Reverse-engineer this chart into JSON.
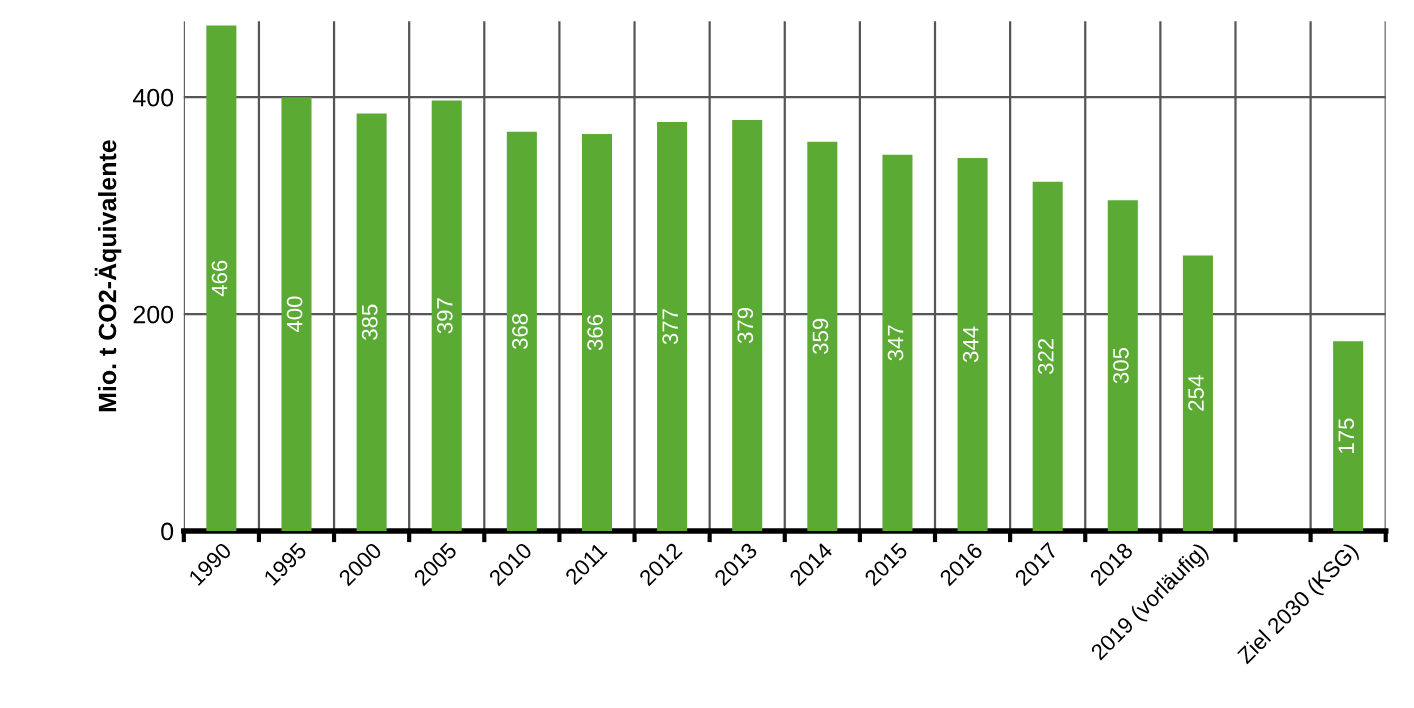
{
  "chart_data": {
    "type": "bar",
    "ylabel": "Mio. t CO2-Äquivalente",
    "categories": [
      "1990",
      "1995",
      "2000",
      "2005",
      "2010",
      "2011",
      "2012",
      "2013",
      "2014",
      "2015",
      "2016",
      "2017",
      "2018",
      "2019 (vorläufig)",
      null,
      "Ziel 2030 (KSG)"
    ],
    "values": [
      466,
      400,
      385,
      397,
      368,
      366,
      377,
      379,
      359,
      347,
      344,
      322,
      305,
      254,
      null,
      175
    ],
    "color": "#5aaa33",
    "ylim": [
      0,
      470
    ],
    "yticks": [
      0,
      200,
      400
    ],
    "grid": true,
    "data_labels": true
  }
}
